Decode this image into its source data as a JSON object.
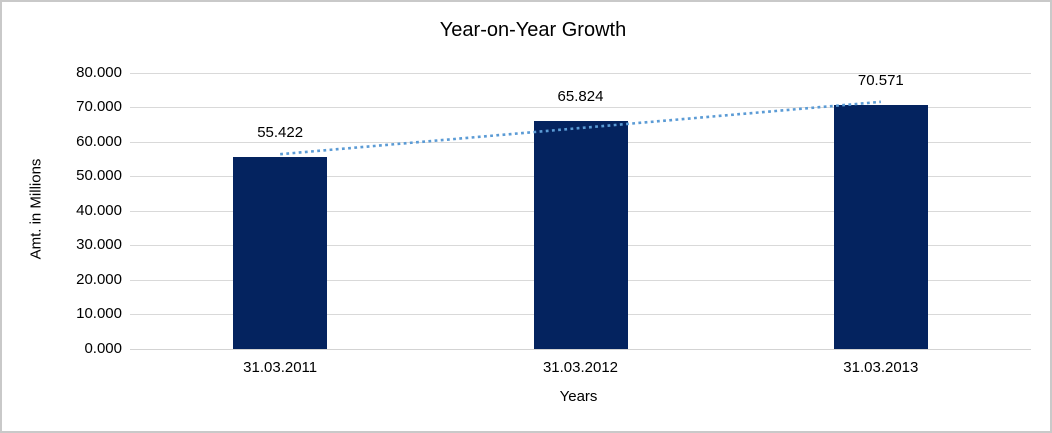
{
  "chart_data": {
    "type": "bar",
    "title": "Year-on-Year Growth",
    "categories": [
      "31.03.2011",
      "31.03.2012",
      "31.03.2013"
    ],
    "values": [
      55.422,
      65.824,
      70.571
    ],
    "data_labels": [
      "55.422",
      "65.824",
      "70.571"
    ],
    "xlabel": "Years",
    "ylabel": "Amt. in Millions",
    "ylim": [
      0,
      80
    ],
    "ytick_step": 10,
    "ytick_labels": [
      "0.000",
      "10.000",
      "20.000",
      "30.000",
      "40.000",
      "50.000",
      "60.000",
      "70.000",
      "80.000"
    ],
    "grid": true,
    "legend": "none",
    "trendline": {
      "type": "linear",
      "style": "dotted"
    },
    "colors": {
      "bar": "#04235f",
      "trendline": "#5b9bd5",
      "gridline": "#d9d9d9",
      "axis_line": "#d3d3d3",
      "text": "#000000",
      "frame_border": "#c9c9c9"
    }
  }
}
